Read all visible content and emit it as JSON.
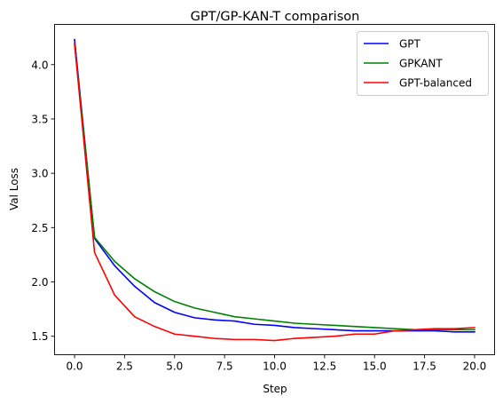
{
  "chart_data": {
    "type": "line",
    "title": "GPT/GP-KAN-T comparison",
    "xlabel": "Step",
    "ylabel": "Val Loss",
    "xlim": [
      -1,
      21
    ],
    "ylim": [
      1.33,
      4.37
    ],
    "xticks": [
      0.0,
      2.5,
      5.0,
      7.5,
      10.0,
      12.5,
      15.0,
      17.5,
      20.0
    ],
    "xtick_labels": [
      "0.0",
      "2.5",
      "5.0",
      "7.5",
      "10.0",
      "12.5",
      "15.0",
      "17.5",
      "20.0"
    ],
    "yticks": [
      1.5,
      2.0,
      2.5,
      3.0,
      3.5,
      4.0
    ],
    "ytick_labels": [
      "1.5",
      "2.0",
      "2.5",
      "3.0",
      "3.5",
      "4.0"
    ],
    "grid": false,
    "legend_position": "top-right",
    "x": [
      0,
      1,
      2,
      3,
      4,
      5,
      6,
      7,
      8,
      9,
      10,
      11,
      12,
      13,
      14,
      15,
      16,
      17,
      18,
      19,
      20
    ],
    "series": [
      {
        "name": "GPT",
        "color": "#0000ff",
        "values": [
          4.23,
          2.4,
          2.15,
          1.96,
          1.81,
          1.72,
          1.67,
          1.65,
          1.64,
          1.61,
          1.6,
          1.58,
          1.57,
          1.56,
          1.55,
          1.55,
          1.55,
          1.55,
          1.55,
          1.54,
          1.54
        ]
      },
      {
        "name": "GPKANT",
        "color": "#008000",
        "values": [
          4.19,
          2.41,
          2.19,
          2.03,
          1.91,
          1.82,
          1.76,
          1.72,
          1.68,
          1.66,
          1.64,
          1.62,
          1.61,
          1.6,
          1.59,
          1.58,
          1.57,
          1.56,
          1.56,
          1.56,
          1.56
        ]
      },
      {
        "name": "GPT-balanced",
        "color": "#ff0000",
        "values": [
          4.19,
          2.27,
          1.88,
          1.68,
          1.59,
          1.52,
          1.5,
          1.48,
          1.47,
          1.47,
          1.46,
          1.48,
          1.49,
          1.5,
          1.52,
          1.52,
          1.55,
          1.56,
          1.57,
          1.57,
          1.58
        ]
      }
    ]
  }
}
